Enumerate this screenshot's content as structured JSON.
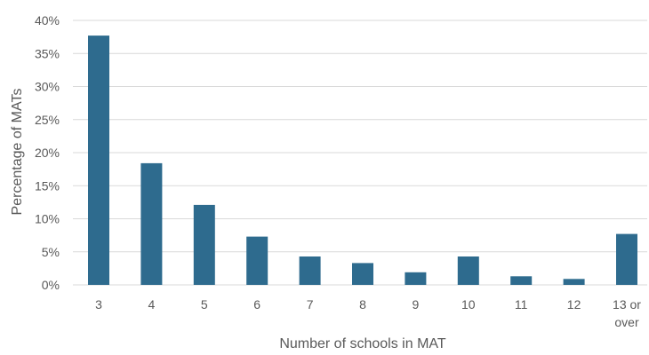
{
  "chart_data": {
    "type": "bar",
    "title": "",
    "xlabel": "Number of schools in MAT",
    "ylabel": "Percentage of MATs",
    "categories": [
      "3",
      "4",
      "5",
      "6",
      "7",
      "8",
      "9",
      "10",
      "11",
      "12",
      "13 or over"
    ],
    "values": [
      37.7,
      18.4,
      12.1,
      7.3,
      4.3,
      3.3,
      1.9,
      4.3,
      1.3,
      0.9,
      7.7
    ],
    "ylim": [
      0,
      40
    ],
    "yticks": [
      0,
      5,
      10,
      15,
      20,
      25,
      30,
      35,
      40
    ],
    "ytick_labels": [
      "0%",
      "5%",
      "10%",
      "15%",
      "20%",
      "25%",
      "30%",
      "35%",
      "40%"
    ],
    "grid": true,
    "legend": "none",
    "colors": {
      "bar": "#2e6b8e",
      "grid": "#d9d9d9",
      "text": "#595959"
    }
  }
}
